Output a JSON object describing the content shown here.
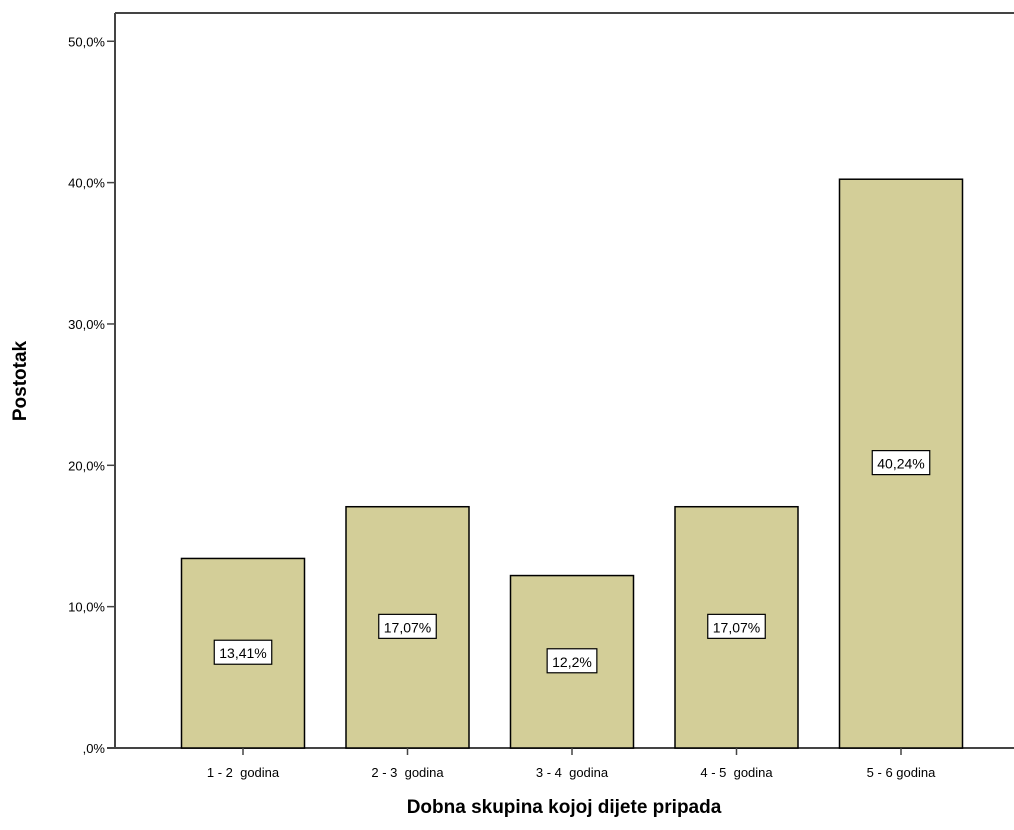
{
  "chart_data": {
    "type": "bar",
    "title": "",
    "xlabel": "Dobna skupina kojoj dijete pripada",
    "ylabel": "Postotak",
    "categories": [
      "1 - 2  godina",
      "2 - 3  godina",
      "3 - 4  godina",
      "4 - 5  godina",
      "5 - 6 godina"
    ],
    "values": [
      13.41,
      17.07,
      12.2,
      17.07,
      40.24
    ],
    "data_labels": [
      "13,41%",
      "17,07%",
      "12,2%",
      "17,07%",
      "40,24%"
    ],
    "ylim": [
      0,
      52
    ],
    "yticks": [
      0,
      10,
      20,
      30,
      40,
      50
    ],
    "ytick_labels": [
      ",0%",
      "10,0%",
      "20,0%",
      "30,0%",
      "40,0%",
      "50,0%"
    ],
    "grid": false,
    "legend": "none",
    "colors": {
      "bar_fill": "#d3ce98",
      "bar_stroke": "#000000",
      "axis": "#444444",
      "label_box": "#ffffff"
    }
  }
}
